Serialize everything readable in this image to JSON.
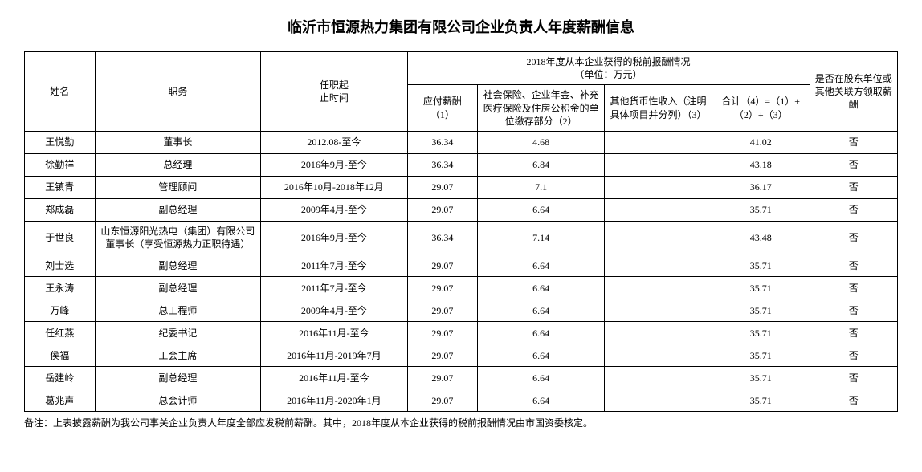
{
  "title": "临沂市恒源热力集团有限公司企业负责人年度薪酬信息",
  "header": {
    "name": "姓名",
    "position": "职务",
    "period": "任职起\n止时间",
    "group_title": "2018年度从本企业获得的税前报酬情况\n（单位：万元）",
    "col1": "应付薪酬\n（1）",
    "col2": "社会保险、企业年金、补充医疗保险及住房公积金的单位缴存部分（2）",
    "col3": "其他货币性收入（注明具体项目并分列）（3）",
    "col4": "合计（4）=（1）+（2）+（3）",
    "flag": "是否在股东单位或其他关联方领取薪酬"
  },
  "rows": [
    {
      "name": "王悦勤",
      "position": "董事长",
      "period": "2012.08-至今",
      "v1": "36.34",
      "v2": "4.68",
      "v3": "",
      "v4": "41.02",
      "flag": "否"
    },
    {
      "name": "徐勤祥",
      "position": "总经理",
      "period": "2016年9月-至今",
      "v1": "36.34",
      "v2": "6.84",
      "v3": "",
      "v4": "43.18",
      "flag": "否"
    },
    {
      "name": "王镇青",
      "position": "管理顾问",
      "period": "2016年10月-2018年12月",
      "v1": "29.07",
      "v2": "7.1",
      "v3": "",
      "v4": "36.17",
      "flag": "否"
    },
    {
      "name": "郑成磊",
      "position": "副总经理",
      "period": "2009年4月-至今",
      "v1": "29.07",
      "v2": "6.64",
      "v3": "",
      "v4": "35.71",
      "flag": "否"
    },
    {
      "name": "于世良",
      "position": "山东恒源阳光热电（集团）有限公司董事长（享受恒源热力正职待遇）",
      "period": "2016年9月-至今",
      "v1": "36.34",
      "v2": "7.14",
      "v3": "",
      "v4": "43.48",
      "flag": "否"
    },
    {
      "name": "刘士选",
      "position": "副总经理",
      "period": "2011年7月-至今",
      "v1": "29.07",
      "v2": "6.64",
      "v3": "",
      "v4": "35.71",
      "flag": "否"
    },
    {
      "name": "王永涛",
      "position": "副总经理",
      "period": "2011年7月-至今",
      "v1": "29.07",
      "v2": "6.64",
      "v3": "",
      "v4": "35.71",
      "flag": "否"
    },
    {
      "name": "万峰",
      "position": "总工程师",
      "period": "2009年4月-至今",
      "v1": "29.07",
      "v2": "6.64",
      "v3": "",
      "v4": "35.71",
      "flag": "否"
    },
    {
      "name": "任红燕",
      "position": "纪委书记",
      "period": "2016年11月-至今",
      "v1": "29.07",
      "v2": "6.64",
      "v3": "",
      "v4": "35.71",
      "flag": "否"
    },
    {
      "name": "侯福",
      "position": "工会主席",
      "period": "2016年11月-2019年7月",
      "v1": "29.07",
      "v2": "6.64",
      "v3": "",
      "v4": "35.71",
      "flag": "否"
    },
    {
      "name": "岳建岭",
      "position": "副总经理",
      "period": "2016年11月-至今",
      "v1": "29.07",
      "v2": "6.64",
      "v3": "",
      "v4": "35.71",
      "flag": "否"
    },
    {
      "name": "葛兆声",
      "position": "总会计师",
      "period": "2016年11月-2020年1月",
      "v1": "29.07",
      "v2": "6.64",
      "v3": "",
      "v4": "35.71",
      "flag": "否"
    }
  ],
  "footnote": "备注：上表披露薪酬为我公司事关企业负责人年度全部应发税前薪酬。其中，2018年度从本企业获得的税前报酬情况由市国资委核定。"
}
